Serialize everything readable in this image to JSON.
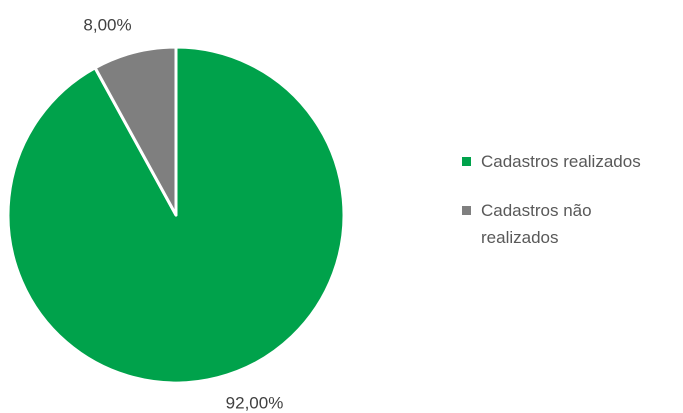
{
  "chart_data": {
    "type": "pie",
    "categories": [
      "Cadastros realizados",
      "Cadastros não realizados"
    ],
    "values": [
      92,
      8
    ],
    "value_labels": [
      "92,00%",
      "8,00%"
    ],
    "colors": [
      "#00a24b",
      "#7f7f7f"
    ],
    "legend": "right"
  }
}
